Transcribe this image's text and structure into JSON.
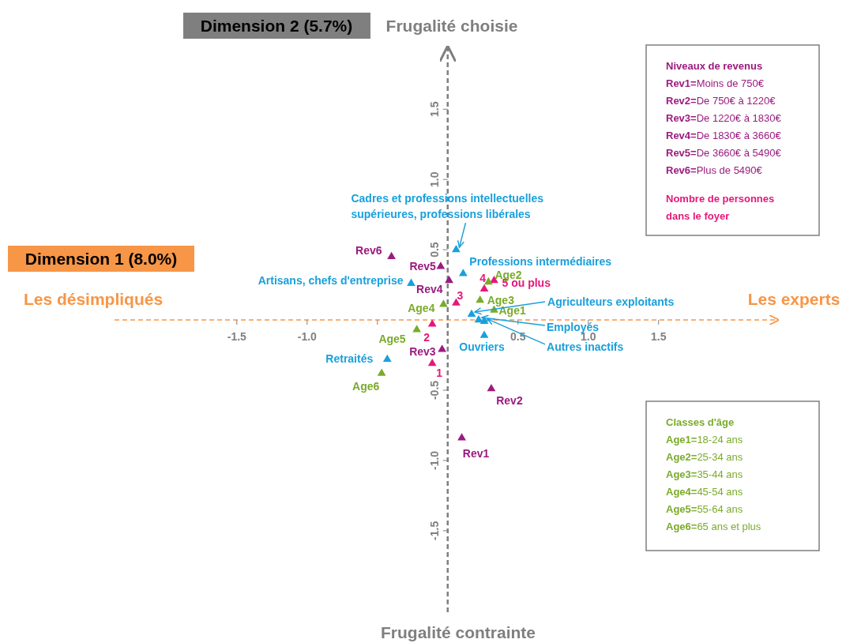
{
  "chart_data": {
    "type": "scatter",
    "xlabel": "Dimension 1 (8.0%)",
    "ylabel": "Dimension 2 (5.7%)",
    "xlim": [
      -2.37,
      2.35
    ],
    "ylim": [
      -2.08,
      1.94
    ],
    "xticks": [
      {
        "value": -1.5,
        "label": "-1.5"
      },
      {
        "value": -1,
        "label": "-1.0"
      },
      {
        "value": -0.5,
        "label": null
      },
      {
        "value": 0.5,
        "label": "0.5"
      },
      {
        "value": 1,
        "label": "1.0"
      },
      {
        "value": 1.5,
        "label": "1.5"
      }
    ],
    "yticks": [
      {
        "value": -1.5,
        "label": "-1.5"
      },
      {
        "value": -1,
        "label": "-1.0"
      },
      {
        "value": -0.5,
        "label": "-0.5"
      },
      {
        "value": 0.5,
        "label": "0.5"
      },
      {
        "value": 1,
        "label": "1.0"
      },
      {
        "value": 1.5,
        "label": "1.5"
      }
    ],
    "grid": false,
    "marker": "triangle",
    "ref_lines": [
      {
        "axis": "y",
        "value": 0,
        "color": "#f79646",
        "line_style": "dashed"
      },
      {
        "axis": "x",
        "value": 0,
        "color": "#7f7f7f",
        "line_style": "dashed"
      }
    ],
    "series": [
      {
        "name": "Rev1",
        "color": "#9b1b7e",
        "x": [
          0.1
        ],
        "values": [
          -0.84
        ]
      },
      {
        "name": "Rev2",
        "color": "#9b1b7e",
        "x": [
          0.31
        ],
        "values": [
          -0.49
        ]
      },
      {
        "name": "Rev3",
        "color": "#9b1b7e",
        "x": [
          -0.04
        ],
        "values": [
          -0.21
        ]
      },
      {
        "name": "Rev4",
        "color": "#9b1b7e",
        "x": [
          0.01
        ],
        "values": [
          0.28
        ]
      },
      {
        "name": "Rev5",
        "color": "#9b1b7e",
        "x": [
          -0.05
        ],
        "values": [
          0.38
        ]
      },
      {
        "name": "Rev6",
        "color": "#9b1b7e",
        "x": [
          -0.4
        ],
        "values": [
          0.45
        ]
      },
      {
        "name": "1",
        "color": "#e6177a",
        "x": [
          -0.11
        ],
        "values": [
          -0.31
        ]
      },
      {
        "name": "2",
        "color": "#e6177a",
        "x": [
          -0.11
        ],
        "values": [
          -0.03
        ]
      },
      {
        "name": "3",
        "color": "#e6177a",
        "x": [
          0.06
        ],
        "values": [
          0.12
        ]
      },
      {
        "name": "4",
        "color": "#e6177a",
        "x": [
          0.26
        ],
        "values": [
          0.22
        ]
      },
      {
        "name": "5 ou plus",
        "color": "#e6177a",
        "x": [
          0.33
        ],
        "values": [
          0.28
        ]
      },
      {
        "name": "Age1",
        "color": "#7aab2a",
        "x": [
          0.33
        ],
        "values": [
          0.07
        ]
      },
      {
        "name": "Age2",
        "color": "#7aab2a",
        "x": [
          0.29
        ],
        "values": [
          0.27
        ]
      },
      {
        "name": "Age3",
        "color": "#7aab2a",
        "x": [
          0.23
        ],
        "values": [
          0.14
        ]
      },
      {
        "name": "Age4",
        "color": "#7aab2a",
        "x": [
          -0.03
        ],
        "values": [
          0.11
        ]
      },
      {
        "name": "Age5",
        "color": "#7aab2a",
        "x": [
          -0.22
        ],
        "values": [
          -0.07
        ]
      },
      {
        "name": "Age6",
        "color": "#7aab2a",
        "x": [
          -0.47
        ],
        "values": [
          -0.38
        ]
      },
      {
        "name": "Agriculteurs exploitants",
        "color": "#1aa0dc",
        "x": [
          0.17
        ],
        "values": [
          0.04
        ]
      },
      {
        "name": "Artisans, chefs d'entreprise",
        "color": "#1aa0dc",
        "x": [
          -0.26
        ],
        "values": [
          0.26
        ]
      },
      {
        "name": "Cadres et professions intellectuelles supérieures, professions libérales",
        "color": "#1aa0dc",
        "x": [
          0.06
        ],
        "values": [
          0.5
        ]
      },
      {
        "name": "Professions intermédiaires",
        "color": "#1aa0dc",
        "x": [
          0.11
        ],
        "values": [
          0.33
        ]
      },
      {
        "name": "Employés",
        "color": "#1aa0dc",
        "x": [
          0.22
        ],
        "values": [
          0.0
        ]
      },
      {
        "name": "Ouvriers",
        "color": "#1aa0dc",
        "x": [
          0.26
        ],
        "values": [
          -0.11
        ]
      },
      {
        "name": "Retraités",
        "color": "#1aa0dc",
        "x": [
          -0.43
        ],
        "values": [
          -0.28
        ]
      },
      {
        "name": "Autres inactifs",
        "color": "#1aa0dc",
        "x": [
          0.26
        ],
        "values": [
          -0.01
        ]
      }
    ],
    "annotations": [
      "Les désimpliqués",
      "Les experts",
      "Frugalité choisie",
      "Frugalité contrainte",
      "Niveaux de revenus",
      "Rev1=Moins de 750€",
      "Rev2=De 750€ à 1220€",
      "Rev3=De 1220€ à 1830€",
      "Rev4=De 1830€ à 3660€",
      "Rev5=De 3660€ à 5490€",
      "Rev6=Plus de 5490€",
      "Nombre de personnes dans le foyer",
      "Classes d'âge",
      "Age1=18-24 ans",
      "Age2=25-34 ans",
      "Age3=35-44 ans",
      "Age4=45-54 ans",
      "Age5=55-64 ans",
      "Age6=65 ans et plus"
    ]
  }
}
